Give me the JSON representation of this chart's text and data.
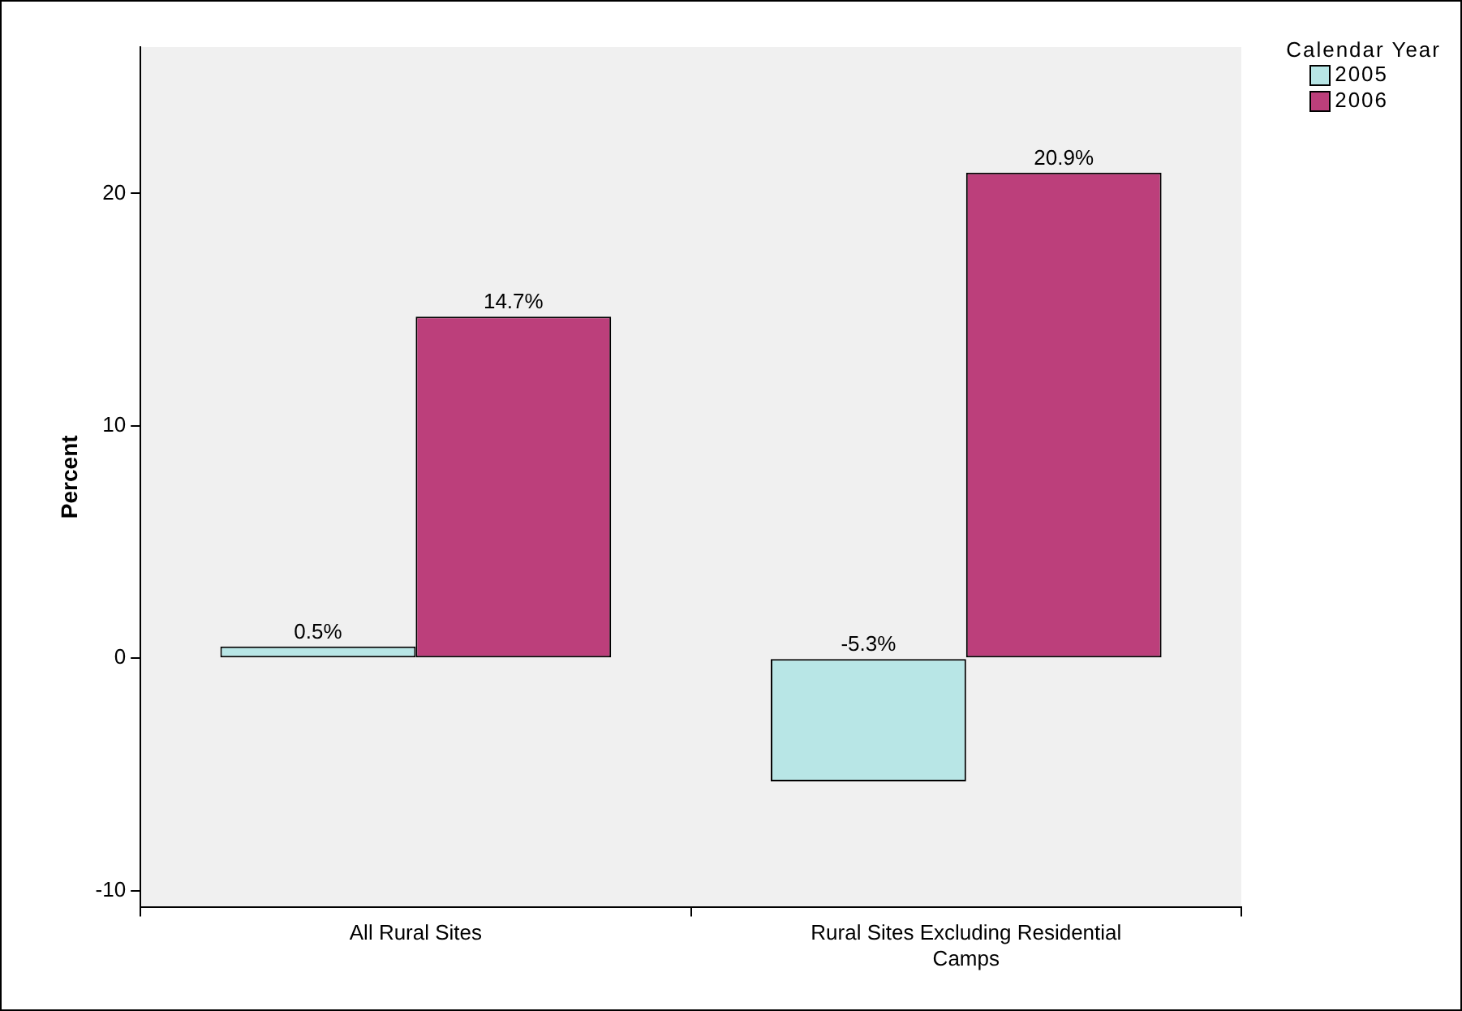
{
  "chart_data": {
    "type": "bar",
    "ylabel": "Percent",
    "legend_title": "Calendar Year",
    "legend": "top right",
    "grid": false,
    "categories": [
      "All Rural Sites",
      "Rural Sites Excluding Residential Camps"
    ],
    "series": [
      {
        "name": "2005",
        "color": "#b8e6e6",
        "values": [
          0.5,
          -5.3
        ],
        "value_labels": [
          "0.5%",
          "-5.3%"
        ]
      },
      {
        "name": "2006",
        "color": "#bc3f7b",
        "values": [
          14.7,
          20.9
        ],
        "value_labels": [
          "14.7%",
          "20.9%"
        ]
      }
    ],
    "ylim": [
      -10.7,
      26.3
    ],
    "yticks": [
      -10,
      0,
      10,
      20
    ]
  }
}
